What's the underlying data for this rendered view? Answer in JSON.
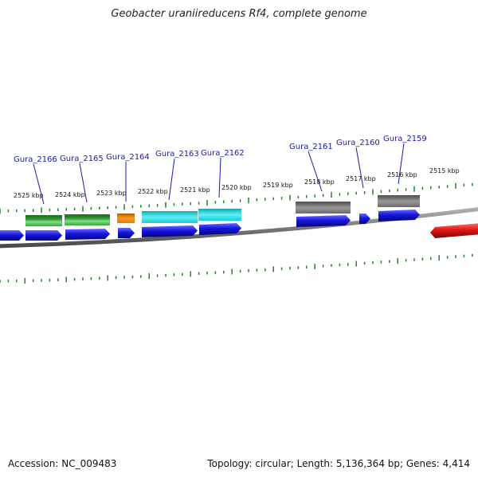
{
  "title": "Geobacter uraniireducens Rf4, complete genome",
  "footer": {
    "accession": "Accession: NC_009483",
    "summary": "Topology: circular; Length: 5,136,364 bp; Genes: 4,414"
  },
  "colors": {
    "tick": "#2e8b2e",
    "backbone": "#8a8a8a",
    "label": "#1a1aa8",
    "gene_blue": "#1515e0",
    "gene_red": "#e01515",
    "feature_green": "#3aa83a",
    "feature_orange": "#ee8a10",
    "feature_cyan": "#15d8e0",
    "feature_gray": "#707070"
  },
  "kbp_labels": [
    "2525 kbp",
    "2524 kbp",
    "2523 kbp",
    "2522 kbp",
    "2521 kbp",
    "2520 kbp",
    "2519 kbp",
    "2518 kbp",
    "2517 kbp",
    "2516 kbp",
    "2515 kbp"
  ],
  "gene_labels": [
    "Gura_2166",
    "Gura_2165",
    "Gura_2164",
    "Gura_2163",
    "Gura_2162",
    "Gura_2161",
    "Gura_2160",
    "Gura_2159"
  ]
}
